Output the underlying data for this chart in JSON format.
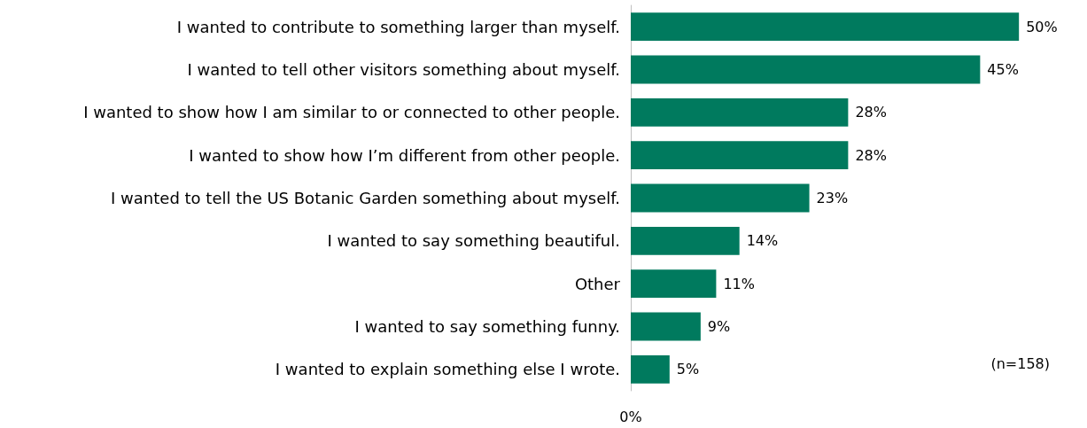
{
  "chart_data": {
    "type": "bar",
    "orientation": "horizontal",
    "categories": [
      "I wanted to contribute to something larger than myself.",
      "I wanted to tell other visitors something about myself.",
      "I wanted to show how I am similar to or connected to other people.",
      "I wanted to show how I’m different from other people.",
      "I wanted to tell the US Botanic Garden something about myself.",
      "I wanted to say something beautiful.",
      "Other",
      "I wanted to say something funny.",
      "I wanted to explain something else I wrote."
    ],
    "values": [
      50,
      45,
      28,
      28,
      23,
      14,
      11,
      9,
      5
    ],
    "value_labels": [
      "50%",
      "45%",
      "28%",
      "28%",
      "23%",
      "14%",
      "11%",
      "9%",
      "5%"
    ],
    "color": "#007a5e",
    "annotations": [
      "(n=158)",
      "0%"
    ]
  }
}
